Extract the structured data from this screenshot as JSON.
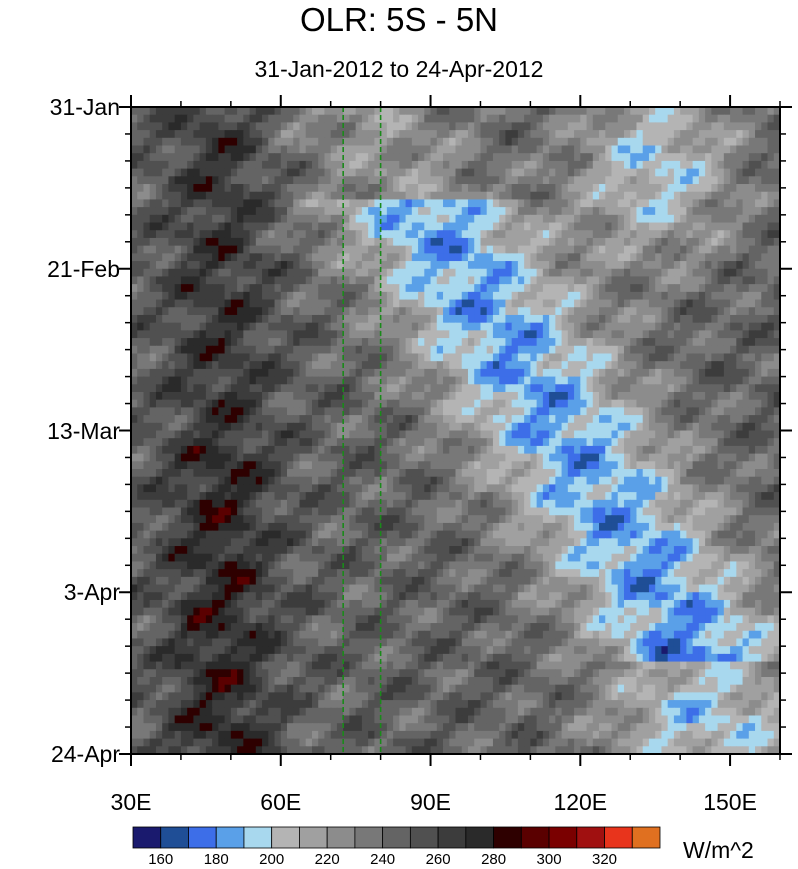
{
  "chart_data": {
    "type": "heatmap",
    "title": "OLR: 5S - 5N",
    "subtitle": "31-Jan-2012 to 24-Apr-2012",
    "x_range": [
      30,
      160
    ],
    "x_ticks": [
      {
        "value": 30,
        "label": "30E"
      },
      {
        "value": 60,
        "label": "60E"
      },
      {
        "value": 90,
        "label": "90E"
      },
      {
        "value": 120,
        "label": "120E"
      },
      {
        "value": 150,
        "label": "150E"
      }
    ],
    "y_range": [
      "2012-01-31",
      "2012-04-24"
    ],
    "y_ticks": [
      {
        "value": "2012-01-31",
        "label": "31-Jan"
      },
      {
        "value": "2012-02-21",
        "label": "21-Feb"
      },
      {
        "value": "2012-03-13",
        "label": "13-Mar"
      },
      {
        "value": "2012-04-03",
        "label": "3-Apr"
      },
      {
        "value": "2012-04-24",
        "label": "24-Apr"
      }
    ],
    "reference_lines_lon": [
      72.5,
      80
    ],
    "colorbar": {
      "units": "W/m^2",
      "levels": [
        150,
        160,
        170,
        180,
        190,
        200,
        210,
        220,
        230,
        240,
        250,
        260,
        270,
        280,
        290,
        300,
        310,
        320,
        330
      ],
      "labels": [
        "160",
        "180",
        "200",
        "220",
        "240",
        "260",
        "280",
        "300",
        "320"
      ],
      "colors": [
        "#1a1a6e",
        "#1f4e96",
        "#3d6ee8",
        "#5aa0e8",
        "#a8d8ee",
        "#b4b4b4",
        "#a0a0a0",
        "#8c8c8c",
        "#787878",
        "#646464",
        "#505050",
        "#3c3c3c",
        "#2a2a2a",
        "#2e0000",
        "#5a0000",
        "#7a0000",
        "#a01010",
        "#e8341c",
        "#e07020"
      ]
    }
  }
}
